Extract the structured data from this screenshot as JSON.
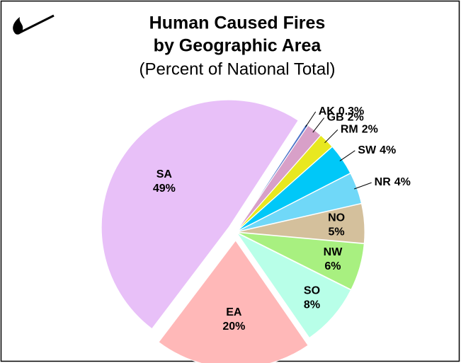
{
  "chart_data": {
    "type": "pie",
    "title_lines": [
      "Human Caused Fires",
      "by Geographic Area"
    ],
    "subtitle": "(Percent of National Total)",
    "categories": [
      "AK",
      "GB",
      "RM",
      "SW",
      "NR",
      "NO",
      "NW",
      "SO",
      "EA",
      "SA"
    ],
    "values": [
      0.3,
      2,
      2,
      4,
      4,
      5,
      6,
      8,
      20,
      49
    ],
    "value_labels": [
      "0.3%",
      "2%",
      "2%",
      "4%",
      "4%",
      "5%",
      "6%",
      "8%",
      "20%",
      "49%"
    ],
    "colors": [
      "#4a72c8",
      "#d8a0c8",
      "#e8e820",
      "#00c8f8",
      "#70d8f8",
      "#d4c09c",
      "#a8f080",
      "#b8ffe8",
      "#ffb8b8",
      "#e8c0f8"
    ],
    "exploded": [
      false,
      false,
      false,
      false,
      false,
      false,
      false,
      false,
      true,
      true
    ]
  }
}
